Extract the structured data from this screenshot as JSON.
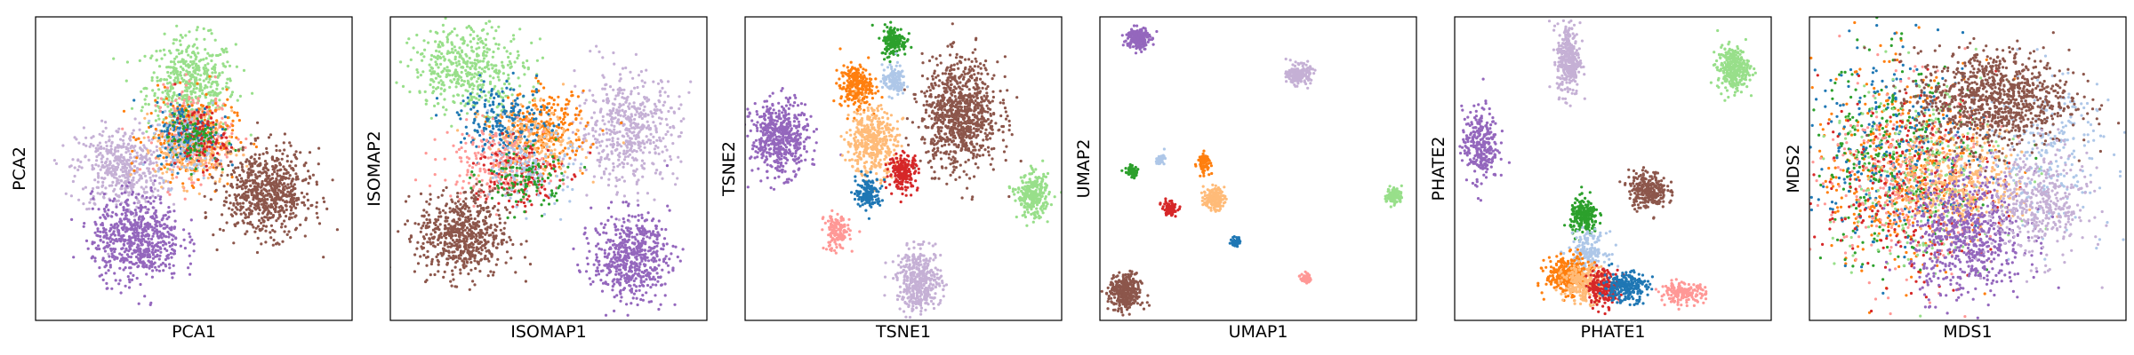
{
  "chart_data": [
    {
      "type": "scatter",
      "xlabel": "PCA1",
      "ylabel": "PCA2",
      "xlim": [
        0,
        100
      ],
      "ylim": [
        0,
        100
      ],
      "grid": false,
      "clusters": [
        {
          "color": "#98df8a",
          "center": [
            49,
            77
          ],
          "spread": [
            7,
            8
          ],
          "count": 520
        },
        {
          "color": "#c5b0d5",
          "center": [
            27,
            50
          ],
          "spread": [
            7,
            7
          ],
          "count": 480
        },
        {
          "color": "#ff9896",
          "center": [
            50,
            62
          ],
          "spread": [
            6,
            7
          ],
          "count": 260
        },
        {
          "color": "#ff7f0e",
          "center": [
            49,
            60
          ],
          "spread": [
            7,
            7
          ],
          "count": 260
        },
        {
          "color": "#ffbb78",
          "center": [
            50,
            57
          ],
          "spread": [
            6,
            6
          ],
          "count": 240
        },
        {
          "color": "#1f77b4",
          "center": [
            48,
            62
          ],
          "spread": [
            5,
            5
          ],
          "count": 140
        },
        {
          "color": "#aec7e8",
          "center": [
            48,
            58
          ],
          "spread": [
            5,
            5
          ],
          "count": 120
        },
        {
          "color": "#d62728",
          "center": [
            52,
            60
          ],
          "spread": [
            4,
            5
          ],
          "count": 100
        },
        {
          "color": "#2ca02c",
          "center": [
            50,
            60
          ],
          "spread": [
            4,
            4
          ],
          "count": 80
        },
        {
          "color": "#9467bd",
          "center": [
            32,
            27
          ],
          "spread": [
            7,
            7
          ],
          "count": 650
        },
        {
          "color": "#8c564b",
          "center": [
            73,
            42
          ],
          "spread": [
            7,
            7
          ],
          "count": 700
        }
      ]
    },
    {
      "type": "scatter",
      "xlabel": "ISOMAP1",
      "ylabel": "ISOMAP2",
      "xlim": [
        0,
        100
      ],
      "ylim": [
        0,
        100
      ],
      "grid": false,
      "clusters": [
        {
          "color": "#98df8a",
          "center": [
            25,
            83
          ],
          "spread": [
            9,
            7
          ],
          "count": 450
        },
        {
          "color": "#c5b0d5",
          "center": [
            75,
            63
          ],
          "spread": [
            8,
            9
          ],
          "count": 520
        },
        {
          "color": "#ff7f0e",
          "center": [
            48,
            63
          ],
          "spread": [
            7,
            6
          ],
          "count": 280
        },
        {
          "color": "#ffbb78",
          "center": [
            45,
            58
          ],
          "spread": [
            8,
            6
          ],
          "count": 200
        },
        {
          "color": "#1f77b4",
          "center": [
            36,
            66
          ],
          "spread": [
            7,
            6
          ],
          "count": 200
        },
        {
          "color": "#ff9896",
          "center": [
            33,
            52
          ],
          "spread": [
            8,
            6
          ],
          "count": 230
        },
        {
          "color": "#d62728",
          "center": [
            40,
            48
          ],
          "spread": [
            7,
            6
          ],
          "count": 150
        },
        {
          "color": "#aec7e8",
          "center": [
            45,
            50
          ],
          "spread": [
            6,
            6
          ],
          "count": 150
        },
        {
          "color": "#2ca02c",
          "center": [
            42,
            46
          ],
          "spread": [
            7,
            5
          ],
          "count": 110
        },
        {
          "color": "#9467bd",
          "center": [
            76,
            21
          ],
          "spread": [
            6,
            7
          ],
          "count": 560
        },
        {
          "color": "#8c564b",
          "center": [
            23,
            28
          ],
          "spread": [
            7,
            7
          ],
          "count": 620
        }
      ]
    },
    {
      "type": "scatter",
      "xlabel": "TSNE1",
      "ylabel": "TSNE2",
      "xlim": [
        0,
        100
      ],
      "ylim": [
        0,
        100
      ],
      "grid": false,
      "clusters": [
        {
          "color": "#2ca02c",
          "center": [
            47,
            92
          ],
          "spread": [
            2,
            2.5
          ],
          "count": 160
        },
        {
          "color": "#ff7f0e",
          "center": [
            35,
            77
          ],
          "spread": [
            2.5,
            3.5
          ],
          "count": 260
        },
        {
          "color": "#aec7e8",
          "center": [
            47,
            79
          ],
          "spread": [
            1.8,
            2.5
          ],
          "count": 140
        },
        {
          "color": "#8c564b",
          "center": [
            68,
            68
          ],
          "spread": [
            6,
            9
          ],
          "count": 900
        },
        {
          "color": "#9467bd",
          "center": [
            11,
            60
          ],
          "spread": [
            4.5,
            6
          ],
          "count": 520
        },
        {
          "color": "#ffbb78",
          "center": [
            40,
            59
          ],
          "spread": [
            4,
            5.5
          ],
          "count": 420
        },
        {
          "color": "#d62728",
          "center": [
            50,
            49
          ],
          "spread": [
            2.3,
            3
          ],
          "count": 200
        },
        {
          "color": "#1f77b4",
          "center": [
            39,
            42
          ],
          "spread": [
            2,
            2.5
          ],
          "count": 150
        },
        {
          "color": "#98df8a",
          "center": [
            91,
            41
          ],
          "spread": [
            2.5,
            3.5
          ],
          "count": 280
        },
        {
          "color": "#ff9896",
          "center": [
            29,
            29
          ],
          "spread": [
            2,
            3
          ],
          "count": 150
        },
        {
          "color": "#c5b0d5",
          "center": [
            55,
            13
          ],
          "spread": [
            3.5,
            5
          ],
          "count": 420
        }
      ]
    },
    {
      "type": "scatter",
      "xlabel": "UMAP1",
      "ylabel": "UMAP2",
      "xlim": [
        0,
        100
      ],
      "ylim": [
        0,
        100
      ],
      "grid": false,
      "clusters": [
        {
          "color": "#9467bd",
          "center": [
            12,
            93
          ],
          "spread": [
            1.8,
            1.8
          ],
          "count": 220
        },
        {
          "color": "#c5b0d5",
          "center": [
            63,
            81
          ],
          "spread": [
            1.8,
            1.6
          ],
          "count": 200
        },
        {
          "color": "#2ca02c",
          "center": [
            10,
            49
          ],
          "spread": [
            1,
            0.9
          ],
          "count": 60
        },
        {
          "color": "#aec7e8",
          "center": [
            19,
            53
          ],
          "spread": [
            0.7,
            0.8
          ],
          "count": 40
        },
        {
          "color": "#ff7f0e",
          "center": [
            33,
            52
          ],
          "spread": [
            1,
            1.6
          ],
          "count": 90
        },
        {
          "color": "#d62728",
          "center": [
            22,
            37
          ],
          "spread": [
            1.2,
            1.2
          ],
          "count": 80
        },
        {
          "color": "#ffbb78",
          "center": [
            36,
            40
          ],
          "spread": [
            1.6,
            1.8
          ],
          "count": 160
        },
        {
          "color": "#98df8a",
          "center": [
            93,
            41
          ],
          "spread": [
            1.2,
            1.4
          ],
          "count": 100
        },
        {
          "color": "#1f77b4",
          "center": [
            43,
            26
          ],
          "spread": [
            0.7,
            0.9
          ],
          "count": 40
        },
        {
          "color": "#ff9896",
          "center": [
            65,
            14
          ],
          "spread": [
            0.8,
            0.8
          ],
          "count": 50
        },
        {
          "color": "#8c564b",
          "center": [
            8,
            9
          ],
          "spread": [
            2.5,
            3
          ],
          "count": 350
        }
      ]
    },
    {
      "type": "scatter",
      "xlabel": "PHATE1",
      "ylabel": "PHATE2",
      "xlim": [
        0,
        100
      ],
      "ylim": [
        0,
        100
      ],
      "grid": false,
      "clusters": [
        {
          "color": "#c5b0d5",
          "center": [
            36,
            86
          ],
          "spread": [
            1.8,
            6
          ],
          "count": 320
        },
        {
          "color": "#98df8a",
          "center": [
            88,
            83
          ],
          "spread": [
            2.5,
            3.5
          ],
          "count": 320
        },
        {
          "color": "#9467bd",
          "center": [
            8,
            58
          ],
          "spread": [
            2.8,
            6
          ],
          "count": 280
        },
        {
          "color": "#8c564b",
          "center": [
            61,
            43
          ],
          "spread": [
            3,
            3
          ],
          "count": 260
        },
        {
          "color": "#2ca02c",
          "center": [
            41,
            34
          ],
          "spread": [
            2.2,
            3
          ],
          "count": 220
        },
        {
          "color": "#aec7e8",
          "center": [
            42,
            23
          ],
          "spread": [
            3,
            3
          ],
          "count": 180
        },
        {
          "color": "#ff7f0e",
          "center": [
            36,
            15
          ],
          "spread": [
            3.5,
            3
          ],
          "count": 320
        },
        {
          "color": "#ffbb78",
          "center": [
            41,
            12
          ],
          "spread": [
            3.5,
            3
          ],
          "count": 240
        },
        {
          "color": "#d62728",
          "center": [
            47,
            11
          ],
          "spread": [
            2.5,
            3
          ],
          "count": 200
        },
        {
          "color": "#1f77b4",
          "center": [
            54,
            11
          ],
          "spread": [
            3.5,
            2.5
          ],
          "count": 240
        },
        {
          "color": "#ff9896",
          "center": [
            72,
            9
          ],
          "spread": [
            3.5,
            1.6
          ],
          "count": 180
        }
      ]
    },
    {
      "type": "scatter",
      "xlabel": "MDS1",
      "ylabel": "MDS2",
      "xlim": [
        0,
        100
      ],
      "ylim": [
        0,
        100
      ],
      "grid": false,
      "clusters": [
        {
          "color": "#ff7f0e",
          "center": [
            30,
            50
          ],
          "spread": [
            14,
            17
          ],
          "count": 420
        },
        {
          "color": "#2ca02c",
          "center": [
            25,
            52
          ],
          "spread": [
            13,
            17
          ],
          "count": 280
        },
        {
          "color": "#1f77b4",
          "center": [
            28,
            56
          ],
          "spread": [
            14,
            16
          ],
          "count": 280
        },
        {
          "color": "#98df8a",
          "center": [
            34,
            50
          ],
          "spread": [
            15,
            17
          ],
          "count": 280
        },
        {
          "color": "#ff9896",
          "center": [
            30,
            46
          ],
          "spread": [
            13,
            16
          ],
          "count": 280
        },
        {
          "color": "#aec7e8",
          "center": [
            76,
            56
          ],
          "spread": [
            10,
            13
          ],
          "count": 240
        },
        {
          "color": "#d62728",
          "center": [
            32,
            44
          ],
          "spread": [
            14,
            16
          ],
          "count": 240
        },
        {
          "color": "#ffbb78",
          "center": [
            48,
            45
          ],
          "spread": [
            10,
            8
          ],
          "count": 380
        },
        {
          "color": "#8c564b",
          "center": [
            58,
            73
          ],
          "spread": [
            12,
            8
          ],
          "count": 950
        },
        {
          "color": "#9467bd",
          "center": [
            50,
            28
          ],
          "spread": [
            9,
            10
          ],
          "count": 650
        },
        {
          "color": "#c5b0d5",
          "center": [
            72,
            38
          ],
          "spread": [
            8,
            9
          ],
          "count": 420
        }
      ]
    }
  ]
}
